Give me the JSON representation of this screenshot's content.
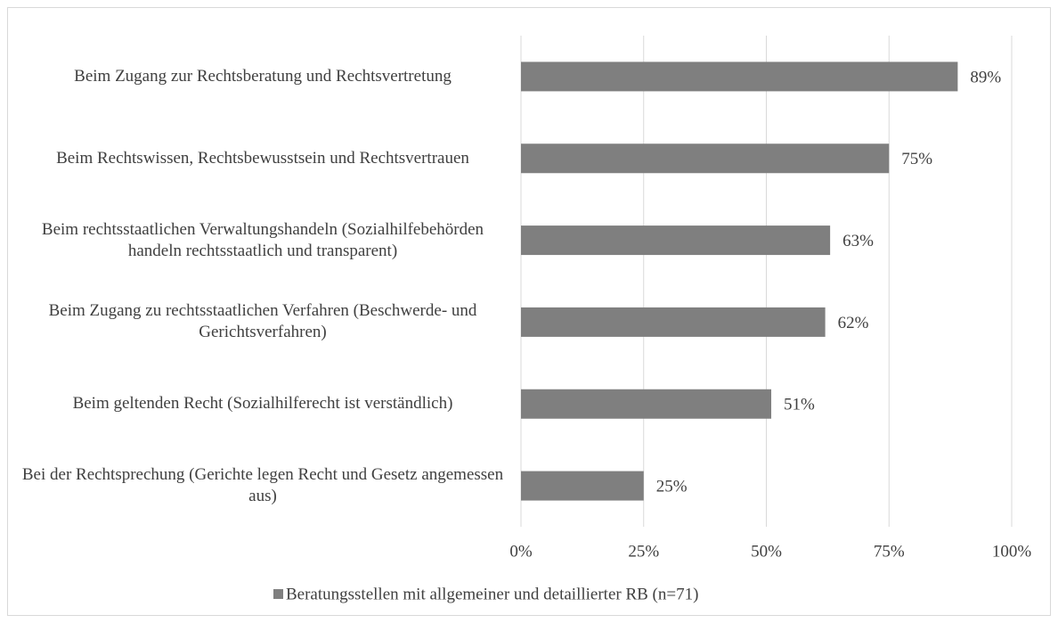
{
  "chart_data": {
    "type": "hbar",
    "categories": [
      "Beim Zugang zur Rechtsberatung und Rechtsvertretung",
      "Beim Rechtswissen, Rechtsbewusstsein und Rechtsvertrauen",
      "Beim rechtsstaatlichen Verwaltungshandeln (Sozialhilfebehörden handeln rechtsstaatlich und transparent)",
      "Beim Zugang zu rechtsstaatlichen Verfahren (Beschwerde- und Gerichtsverfahren)",
      "Beim geltenden Recht (Sozialhilferecht ist verständlich)",
      "Bei der Rechtsprechung (Gerichte legen Recht und Gesetz angemessen aus)"
    ],
    "series": [
      {
        "name": "Beratungsstellen mit allgemeiner und detaillierter RB (n=71)",
        "color": "#7f7f7f",
        "values": [
          89,
          75,
          63,
          62,
          51,
          25
        ],
        "value_labels": [
          "89%",
          "75%",
          "63%",
          "62%",
          "51%",
          "25%"
        ]
      }
    ],
    "xlim": [
      0,
      100
    ],
    "xticks": [
      {
        "value": 0,
        "label": "0%"
      },
      {
        "value": 25,
        "label": "25%"
      },
      {
        "value": 50,
        "label": "50%"
      },
      {
        "value": 75,
        "label": "75%"
      },
      {
        "value": 100,
        "label": "100%"
      }
    ],
    "grid": true,
    "legend": "bottom"
  }
}
